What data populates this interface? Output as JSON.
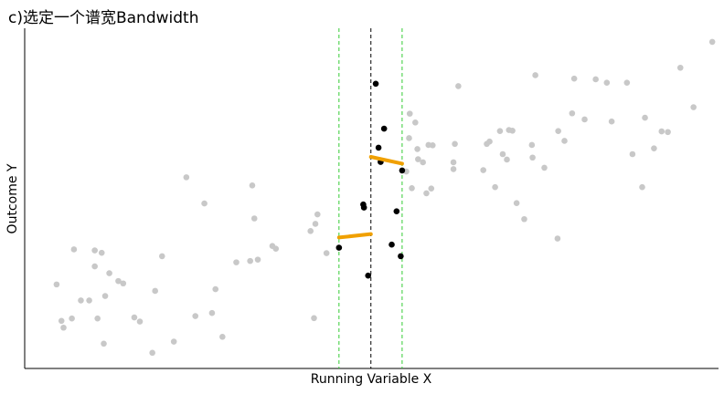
{
  "title": "c)选定一个谱宽Bandwidth",
  "chart_data": {
    "type": "scatter",
    "title": "c)选定一个谱宽Bandwidth",
    "xlabel": "Running Variable X",
    "ylabel": "Outcome Y",
    "xlim": [
      0,
      100
    ],
    "ylim": [
      0,
      100
    ],
    "cutoff": 49.9,
    "bandwidth": [
      45.3,
      54.4
    ],
    "colors": {
      "outside": "#c8c8c8",
      "inside": "#000000",
      "fit": "#f0a000",
      "cutoff_line": "#000000",
      "bandwidth_line": "#33cc33"
    },
    "series": [
      {
        "points": [
          [
            4.6,
            24.7
          ],
          [
            5.3,
            14.0
          ],
          [
            5.6,
            12.0
          ],
          [
            6.8,
            14.7
          ],
          [
            7.1,
            35.0
          ],
          [
            8.1,
            20.0
          ],
          [
            9.3,
            20.0
          ],
          [
            10.1,
            30.0
          ],
          [
            10.1,
            34.7
          ],
          [
            10.5,
            14.7
          ],
          [
            11.1,
            34.0
          ],
          [
            11.4,
            7.3
          ],
          [
            11.6,
            21.3
          ],
          [
            12.2,
            28.0
          ],
          [
            13.5,
            25.7
          ],
          [
            14.2,
            25.0
          ],
          [
            15.8,
            15.0
          ],
          [
            16.6,
            13.8
          ],
          [
            18.4,
            4.6
          ],
          [
            18.8,
            22.8
          ],
          [
            19.8,
            33.0
          ],
          [
            21.5,
            7.9
          ],
          [
            23.3,
            56.2
          ],
          [
            24.6,
            15.4
          ],
          [
            25.9,
            48.5
          ],
          [
            27.0,
            16.3
          ],
          [
            27.5,
            23.3
          ],
          [
            28.5,
            9.3
          ],
          [
            30.5,
            31.2
          ],
          [
            32.5,
            31.6
          ],
          [
            32.8,
            53.8
          ],
          [
            33.1,
            44.1
          ],
          [
            33.6,
            32.0
          ],
          [
            35.7,
            36.0
          ],
          [
            36.2,
            35.2
          ],
          [
            41.2,
            40.4
          ],
          [
            41.7,
            14.8
          ],
          [
            41.9,
            42.5
          ],
          [
            42.2,
            45.3
          ],
          [
            43.5,
            33.9
          ],
          [
            55.0,
            57.9
          ],
          [
            55.4,
            67.7
          ],
          [
            55.5,
            74.9
          ],
          [
            55.8,
            53.0
          ],
          [
            56.3,
            72.3
          ],
          [
            56.6,
            64.5
          ],
          [
            56.7,
            61.5
          ],
          [
            57.4,
            60.6
          ],
          [
            57.9,
            51.5
          ],
          [
            58.2,
            65.7
          ],
          [
            58.6,
            52.9
          ],
          [
            58.8,
            65.6
          ],
          [
            61.8,
            58.6
          ],
          [
            61.8,
            60.6
          ],
          [
            62.0,
            66.0
          ],
          [
            62.5,
            83.0
          ],
          [
            66.1,
            58.3
          ],
          [
            66.6,
            66.0
          ],
          [
            67.0,
            66.7
          ],
          [
            67.8,
            53.3
          ],
          [
            68.5,
            69.8
          ],
          [
            68.9,
            63.0
          ],
          [
            69.5,
            61.4
          ],
          [
            69.8,
            70.1
          ],
          [
            70.3,
            69.9
          ],
          [
            70.9,
            48.6
          ],
          [
            72.0,
            43.9
          ],
          [
            73.1,
            65.7
          ],
          [
            73.2,
            62.0
          ],
          [
            73.6,
            86.2
          ],
          [
            74.9,
            59.0
          ],
          [
            76.8,
            38.2
          ],
          [
            76.9,
            69.8
          ],
          [
            77.8,
            66.9
          ],
          [
            78.9,
            75.0
          ],
          [
            79.2,
            85.2
          ],
          [
            80.7,
            73.2
          ],
          [
            82.3,
            85.0
          ],
          [
            83.9,
            84.0
          ],
          [
            84.6,
            72.6
          ],
          [
            86.8,
            84.0
          ],
          [
            87.6,
            63.0
          ],
          [
            89.0,
            53.3
          ],
          [
            89.4,
            73.7
          ],
          [
            90.7,
            64.7
          ],
          [
            91.8,
            69.7
          ],
          [
            92.7,
            69.5
          ],
          [
            94.5,
            88.4
          ],
          [
            96.4,
            76.8
          ],
          [
            99.1,
            96.0
          ]
        ]
      },
      {
        "points": [
          [
            45.3,
            35.5
          ],
          [
            48.8,
            48.2
          ],
          [
            48.9,
            47.3
          ],
          [
            49.5,
            27.3
          ],
          [
            50.6,
            83.7
          ],
          [
            51.0,
            64.9
          ],
          [
            51.3,
            60.7
          ],
          [
            51.8,
            70.5
          ],
          [
            52.9,
            36.4
          ],
          [
            53.6,
            46.2
          ],
          [
            54.2,
            33.0
          ],
          [
            54.4,
            58.2
          ]
        ]
      }
    ],
    "fits": [
      {
        "x": [
          45.3,
          49.9
        ],
        "y": [
          38.5,
          39.5
        ]
      },
      {
        "x": [
          49.9,
          54.4
        ],
        "y": [
          62.2,
          60.2
        ]
      }
    ]
  }
}
